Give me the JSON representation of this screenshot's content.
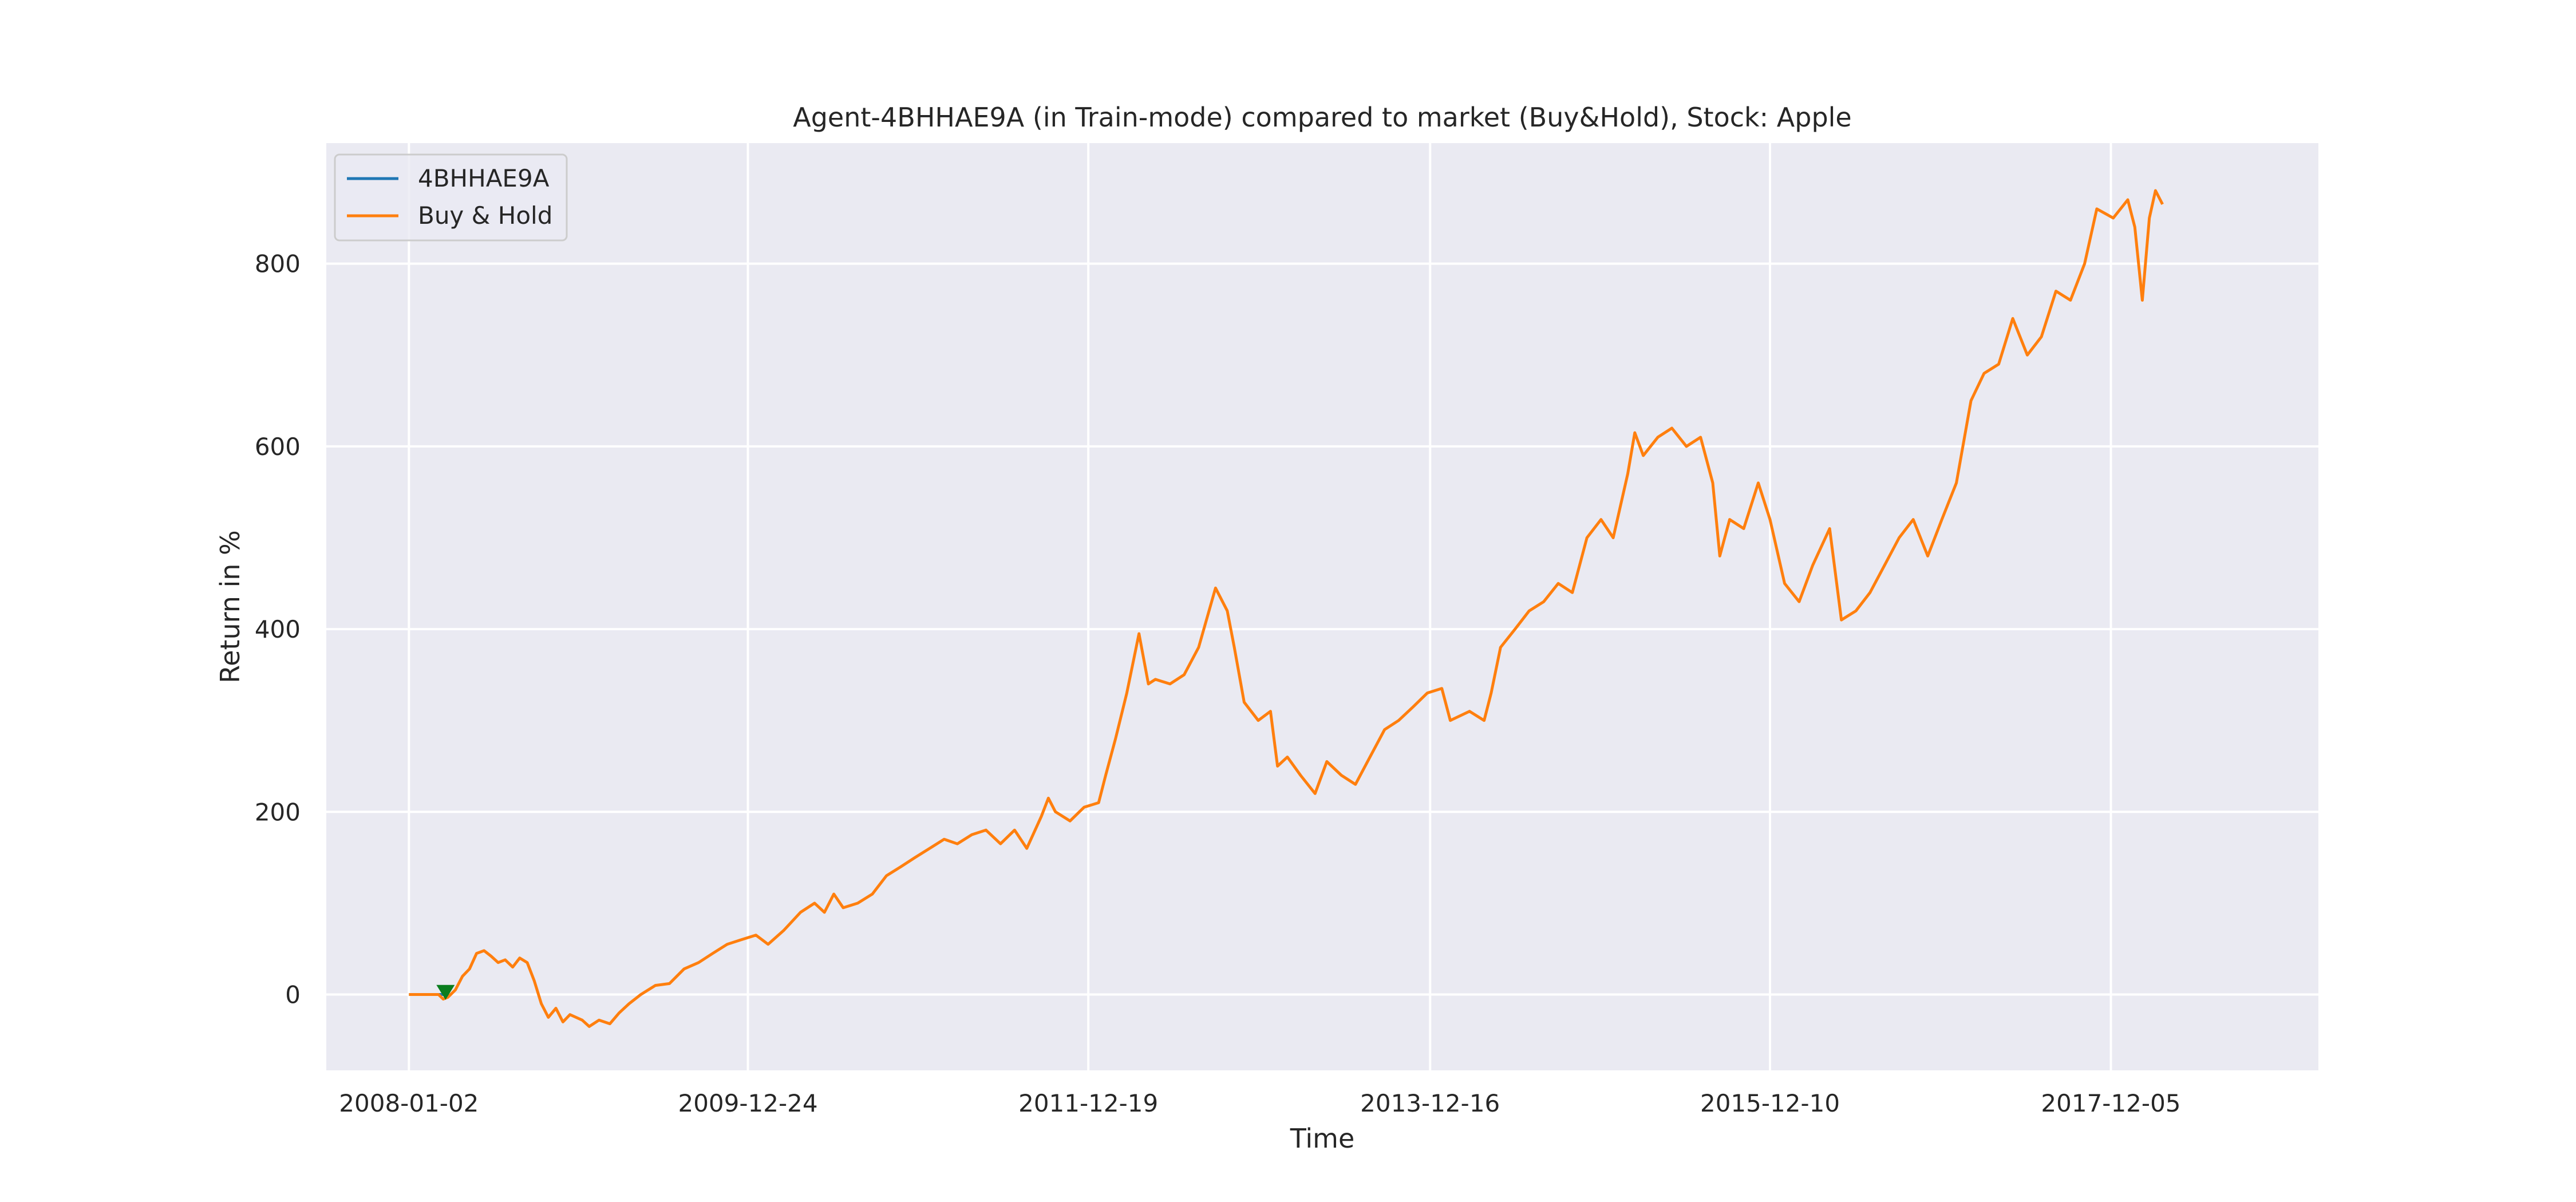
{
  "chart_data": {
    "type": "line",
    "title": "Agent-4BHHAE9A (in Train-mode) compared to market (Buy&Hold), Stock: Apple",
    "xlabel": "Time",
    "ylabel": "Return in %",
    "x_tick_labels": [
      "2008-01-02",
      "2009-12-24",
      "2011-12-19",
      "2013-12-16",
      "2015-12-10",
      "2017-12-05"
    ],
    "y_ticks": [
      0,
      200,
      400,
      600,
      800
    ],
    "xlim": [
      "2007-07-10",
      "2019-02-20"
    ],
    "ylim": [
      -83,
      932
    ],
    "grid": true,
    "legend_position": "top-left",
    "colors": {
      "background": "#eaeaf2",
      "grid": "#ffffff",
      "agent": "#1f77b4",
      "buy_hold": "#ff7f0e",
      "marker": "#0a7d1e"
    },
    "series": [
      {
        "name": "4BHHAE9A",
        "color": "#1f77b4",
        "points": [
          [
            "2008-01-02",
            0
          ],
          [
            "2008-03-20",
            0
          ]
        ]
      },
      {
        "name": "Buy & Hold",
        "color": "#ff7f0e",
        "points": [
          [
            "2008-01-02",
            0
          ],
          [
            "2008-02-10",
            0
          ],
          [
            "2008-03-05",
            0
          ],
          [
            "2008-03-15",
            -5
          ],
          [
            "2008-03-25",
            -3
          ],
          [
            "2008-04-10",
            5
          ],
          [
            "2008-04-25",
            20
          ],
          [
            "2008-05-10",
            28
          ],
          [
            "2008-05-25",
            45
          ],
          [
            "2008-06-10",
            48
          ],
          [
            "2008-06-25",
            42
          ],
          [
            "2008-07-10",
            35
          ],
          [
            "2008-07-25",
            38
          ],
          [
            "2008-08-10",
            30
          ],
          [
            "2008-08-25",
            40
          ],
          [
            "2008-09-10",
            35
          ],
          [
            "2008-09-25",
            15
          ],
          [
            "2008-10-10",
            -10
          ],
          [
            "2008-10-25",
            -25
          ],
          [
            "2008-11-10",
            -15
          ],
          [
            "2008-11-25",
            -30
          ],
          [
            "2008-12-10",
            -22
          ],
          [
            "2009-01-05",
            -28
          ],
          [
            "2009-01-20",
            -35
          ],
          [
            "2009-02-10",
            -28
          ],
          [
            "2009-03-05",
            -32
          ],
          [
            "2009-03-25",
            -20
          ],
          [
            "2009-04-15",
            -10
          ],
          [
            "2009-05-10",
            0
          ],
          [
            "2009-06-10",
            10
          ],
          [
            "2009-07-10",
            12
          ],
          [
            "2009-08-10",
            28
          ],
          [
            "2009-09-10",
            35
          ],
          [
            "2009-10-10",
            45
          ],
          [
            "2009-11-10",
            55
          ],
          [
            "2009-12-10",
            60
          ],
          [
            "2010-01-10",
            65
          ],
          [
            "2010-02-05",
            55
          ],
          [
            "2010-03-10",
            70
          ],
          [
            "2010-04-15",
            90
          ],
          [
            "2010-05-15",
            100
          ],
          [
            "2010-06-05",
            90
          ],
          [
            "2010-06-25",
            110
          ],
          [
            "2010-07-15",
            95
          ],
          [
            "2010-08-15",
            100
          ],
          [
            "2010-09-15",
            110
          ],
          [
            "2010-10-15",
            130
          ],
          [
            "2010-11-15",
            140
          ],
          [
            "2010-12-15",
            150
          ],
          [
            "2011-01-15",
            160
          ],
          [
            "2011-02-15",
            170
          ],
          [
            "2011-03-15",
            165
          ],
          [
            "2011-04-15",
            175
          ],
          [
            "2011-05-15",
            180
          ],
          [
            "2011-06-15",
            165
          ],
          [
            "2011-07-15",
            180
          ],
          [
            "2011-08-10",
            160
          ],
          [
            "2011-09-10",
            195
          ],
          [
            "2011-09-25",
            215
          ],
          [
            "2011-10-10",
            200
          ],
          [
            "2011-11-10",
            190
          ],
          [
            "2011-12-10",
            205
          ],
          [
            "2012-01-10",
            210
          ],
          [
            "2012-01-25",
            240
          ],
          [
            "2012-02-15",
            280
          ],
          [
            "2012-03-10",
            330
          ],
          [
            "2012-04-05",
            395
          ],
          [
            "2012-04-25",
            340
          ],
          [
            "2012-05-10",
            345
          ],
          [
            "2012-06-10",
            340
          ],
          [
            "2012-07-10",
            350
          ],
          [
            "2012-08-10",
            380
          ],
          [
            "2012-09-15",
            445
          ],
          [
            "2012-10-10",
            420
          ],
          [
            "2012-10-25",
            380
          ],
          [
            "2012-11-15",
            320
          ],
          [
            "2012-12-15",
            300
          ],
          [
            "2013-01-10",
            310
          ],
          [
            "2013-01-25",
            250
          ],
          [
            "2013-02-15",
            260
          ],
          [
            "2013-03-15",
            240
          ],
          [
            "2013-04-15",
            220
          ],
          [
            "2013-05-10",
            255
          ],
          [
            "2013-06-10",
            240
          ],
          [
            "2013-07-10",
            230
          ],
          [
            "2013-08-10",
            260
          ],
          [
            "2013-09-10",
            290
          ],
          [
            "2013-10-10",
            300
          ],
          [
            "2013-11-10",
            315
          ],
          [
            "2013-12-10",
            330
          ],
          [
            "2014-01-10",
            335
          ],
          [
            "2014-01-28",
            300
          ],
          [
            "2014-03-10",
            310
          ],
          [
            "2014-04-10",
            300
          ],
          [
            "2014-04-25",
            330
          ],
          [
            "2014-05-15",
            380
          ],
          [
            "2014-06-15",
            400
          ],
          [
            "2014-07-15",
            420
          ],
          [
            "2014-08-15",
            430
          ],
          [
            "2014-09-15",
            450
          ],
          [
            "2014-10-15",
            440
          ],
          [
            "2014-11-15",
            500
          ],
          [
            "2014-12-15",
            520
          ],
          [
            "2015-01-10",
            500
          ],
          [
            "2015-02-10",
            570
          ],
          [
            "2015-02-25",
            615
          ],
          [
            "2015-03-15",
            590
          ],
          [
            "2015-04-15",
            610
          ],
          [
            "2015-05-15",
            620
          ],
          [
            "2015-06-15",
            600
          ],
          [
            "2015-07-15",
            610
          ],
          [
            "2015-08-10",
            560
          ],
          [
            "2015-08-25",
            480
          ],
          [
            "2015-09-15",
            520
          ],
          [
            "2015-10-15",
            510
          ],
          [
            "2015-11-15",
            560
          ],
          [
            "2015-12-10",
            520
          ],
          [
            "2016-01-10",
            450
          ],
          [
            "2016-02-10",
            430
          ],
          [
            "2016-03-10",
            470
          ],
          [
            "2016-04-15",
            510
          ],
          [
            "2016-05-10",
            410
          ],
          [
            "2016-06-10",
            420
          ],
          [
            "2016-07-10",
            440
          ],
          [
            "2016-08-10",
            470
          ],
          [
            "2016-09-10",
            500
          ],
          [
            "2016-10-10",
            520
          ],
          [
            "2016-11-10",
            480
          ],
          [
            "2016-12-10",
            520
          ],
          [
            "2017-01-10",
            560
          ],
          [
            "2017-02-10",
            650
          ],
          [
            "2017-03-10",
            680
          ],
          [
            "2017-04-10",
            690
          ],
          [
            "2017-05-10",
            740
          ],
          [
            "2017-06-10",
            700
          ],
          [
            "2017-07-10",
            720
          ],
          [
            "2017-08-10",
            770
          ],
          [
            "2017-09-10",
            760
          ],
          [
            "2017-10-10",
            800
          ],
          [
            "2017-11-05",
            860
          ],
          [
            "2017-12-10",
            850
          ],
          [
            "2018-01-10",
            870
          ],
          [
            "2018-01-25",
            840
          ],
          [
            "2018-02-10",
            760
          ],
          [
            "2018-02-25",
            850
          ],
          [
            "2018-03-10",
            880
          ],
          [
            "2018-03-25",
            865
          ]
        ]
      }
    ],
    "annotations": [
      {
        "type": "marker",
        "shape": "triangle-down",
        "x": "2008-03-20",
        "y": 3,
        "color": "#0a7d1e"
      }
    ]
  }
}
